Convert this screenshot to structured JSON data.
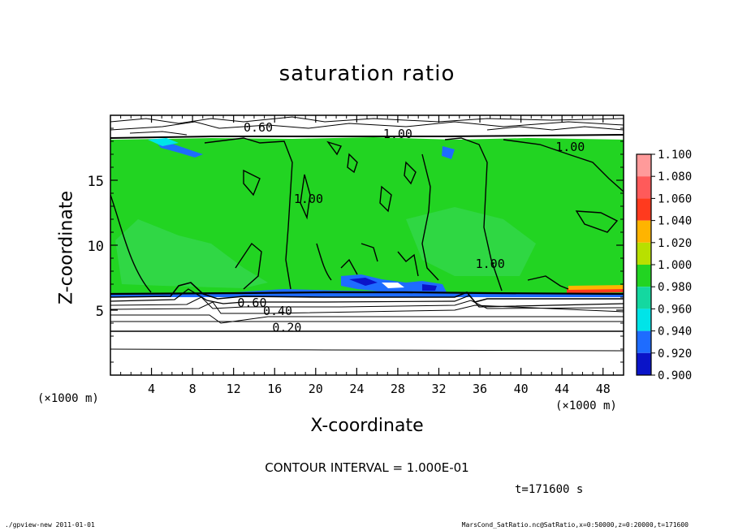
{
  "chart_data": {
    "type": "heatmap",
    "title": "saturation ratio",
    "xlabel": "X-coordinate",
    "ylabel": "Z-coordinate",
    "x_unit_label": "(×1000 m)",
    "xlim": [
      0,
      50
    ],
    "ylim": [
      0,
      20
    ],
    "x_ticks": [
      4,
      8,
      12,
      16,
      20,
      24,
      28,
      32,
      36,
      40,
      44,
      48
    ],
    "y_ticks": [
      5,
      10,
      15
    ],
    "colorbar": {
      "levels": [
        "1.100",
        "1.080",
        "1.060",
        "1.040",
        "1.020",
        "1.000",
        "0.980",
        "0.960",
        "0.940",
        "0.920",
        "0.900"
      ],
      "colors": [
        "#ff9a9a",
        "#ff5a5a",
        "#ff3a1e",
        "#ffb400",
        "#b8e000",
        "#22d422",
        "#14d8a0",
        "#00e4e8",
        "#1e6cff",
        "#0a14c8",
        "#7814a0"
      ]
    },
    "contour_labels": [
      {
        "text": "0.60",
        "x": 14.4,
        "z": 18.8
      },
      {
        "text": "1.00",
        "x": 28.0,
        "z": 18.3
      },
      {
        "text": "1.00",
        "x": 44.8,
        "z": 17.3
      },
      {
        "text": "1.00",
        "x": 19.3,
        "z": 13.3
      },
      {
        "text": "1.00",
        "x": 37.0,
        "z": 8.3
      },
      {
        "text": "0.60",
        "x": 13.8,
        "z": 5.3
      },
      {
        "text": "0.40",
        "x": 16.3,
        "z": 4.7
      },
      {
        "text": "0.20",
        "x": 17.2,
        "z": 3.4
      }
    ],
    "contour_interval_text": "CONTOUR INTERVAL = 1.000E-01",
    "time_text": "t=171600 s",
    "footer_left": "./gpview-new  2011-01-01",
    "footer_right": "MarsCond_SatRatio.nc@SatRatio,x=0:50000,z=0:20000,t=171600"
  },
  "colors": {
    "field_main": "#22d422",
    "field_edge": "#5ee05e",
    "dry_blue": "#1e6cff",
    "dark_blue": "#0a14c8"
  }
}
